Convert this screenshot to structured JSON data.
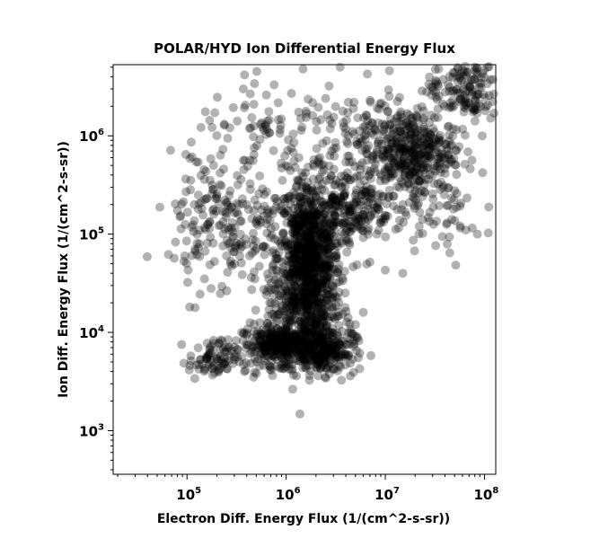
{
  "chart_data": {
    "type": "scatter",
    "title": "POLAR/HYD  Ion Differential Energy Flux",
    "xlabel": "Electron Diff. Energy Flux (1/(cm^2-s-sr))",
    "ylabel": "Ion Diff. Energy Flux (1/(cm^2-s-sr))",
    "xscale": "log",
    "yscale": "log",
    "xlim": [
      18000,
      130000000
    ],
    "ylim": [
      360,
      5300000
    ],
    "xticks": [
      {
        "base": "10",
        "exp": "5",
        "value": 100000
      },
      {
        "base": "10",
        "exp": "6",
        "value": 1000000
      },
      {
        "base": "10",
        "exp": "7",
        "value": 10000000
      },
      {
        "base": "10",
        "exp": "8",
        "value": 100000000
      }
    ],
    "yticks": [
      {
        "base": "10",
        "exp": "3",
        "value": 1000
      },
      {
        "base": "10",
        "exp": "4",
        "value": 10000
      },
      {
        "base": "10",
        "exp": "5",
        "value": 100000
      },
      {
        "base": "10",
        "exp": "6",
        "value": 1000000
      }
    ],
    "grid": false,
    "legend": "none",
    "marker_color": "#000000",
    "marker_alpha": 0.3,
    "series": [
      {
        "clusters": [
          {
            "cx": 1700000,
            "cy": 60000,
            "sx": 0.16,
            "sy": 0.4,
            "n": 900,
            "note": "vertical column"
          },
          {
            "cx": 900000,
            "cy": 7500,
            "sx": 0.2,
            "sy": 0.1,
            "n": 350
          },
          {
            "cx": 2400000,
            "cy": 6500,
            "sx": 0.16,
            "sy": 0.12,
            "n": 250
          },
          {
            "cx": 180000,
            "cy": 5200,
            "sx": 0.12,
            "sy": 0.1,
            "n": 80
          },
          {
            "cx": 1500000,
            "cy": 19000,
            "sx": 0.2,
            "sy": 0.3,
            "n": 250
          },
          {
            "cx": 18000000,
            "cy": 700000,
            "sx": 0.22,
            "sy": 0.22,
            "n": 400
          },
          {
            "cx": 60000000,
            "cy": 3000000,
            "sx": 0.18,
            "sy": 0.18,
            "n": 150
          },
          {
            "cx": 5000000,
            "cy": 200000,
            "sx": 0.18,
            "sy": 0.2,
            "n": 200
          },
          {
            "cx": 250000,
            "cy": 120000,
            "sx": 0.28,
            "sy": 0.35,
            "n": 200
          },
          {
            "cx": 700000,
            "cy": 1000000,
            "sx": 0.4,
            "sy": 0.25,
            "n": 90
          },
          {
            "cx": 30000000,
            "cy": 150000,
            "sx": 0.25,
            "sy": 0.25,
            "n": 60
          },
          {
            "cx": 5000000,
            "cy": 1200000,
            "sx": 0.25,
            "sy": 0.2,
            "n": 80
          }
        ],
        "points": [
          [
            65000,
            62000
          ],
          [
            150000,
            35000
          ],
          [
            175000,
            28000
          ],
          [
            130000,
            250000
          ],
          [
            200000,
            230000
          ],
          [
            400000,
            200000
          ],
          [
            85000,
            150000
          ],
          [
            230000,
            730000
          ],
          [
            480000,
            3400000
          ],
          [
            620000,
            1300000
          ],
          [
            370000,
            3000000
          ],
          [
            3500000,
            5000000
          ],
          [
            11000000,
            4600000
          ],
          [
            21000000,
            1900000
          ],
          [
            60000000,
            4700000
          ],
          [
            80000000,
            5000000
          ],
          [
            125000000,
            1700000
          ],
          [
            95000000,
            1000000
          ],
          [
            85000000,
            100000
          ],
          [
            65000000,
            110000
          ],
          [
            42000000,
            130000
          ],
          [
            15000000,
            40000
          ],
          [
            10000000,
            43000
          ],
          [
            7000000,
            52000
          ],
          [
            6000000,
            16000
          ],
          [
            5000000,
            12000
          ],
          [
            4500000,
            10000
          ],
          [
            3000000,
            4200
          ],
          [
            1000000,
            4800
          ],
          [
            470000,
            3500
          ],
          [
            380000,
            4000
          ],
          [
            10000000,
            350000
          ],
          [
            15000000,
            200000
          ],
          [
            22000000,
            120000
          ],
          [
            2500000,
            2400000
          ],
          [
            1400000,
            1500000
          ],
          [
            1000000,
            500000
          ],
          [
            250000,
            60000
          ],
          [
            120000,
            70000
          ],
          [
            95000,
            60000
          ]
        ]
      }
    ]
  }
}
